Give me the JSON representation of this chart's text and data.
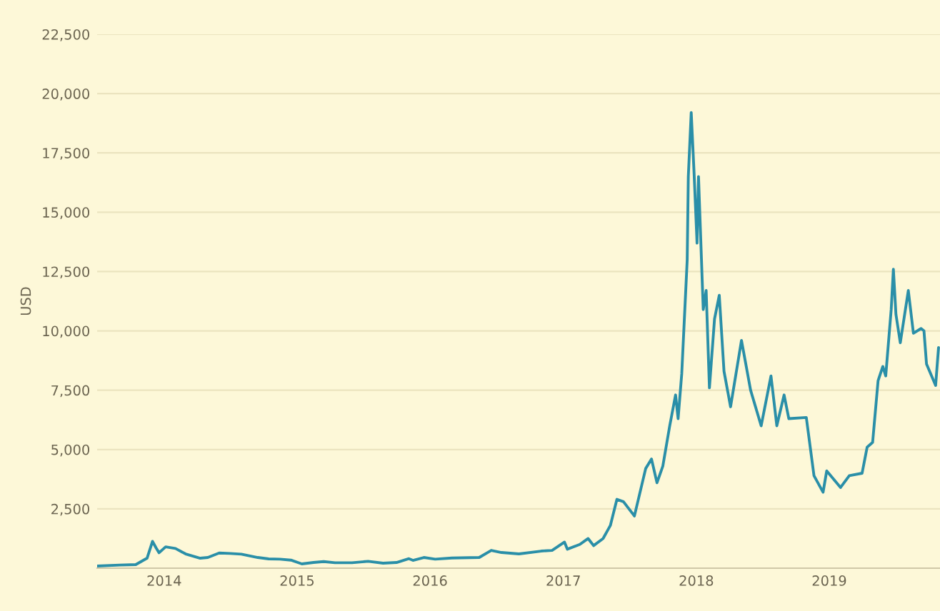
{
  "chart_data": {
    "type": "line",
    "ylabel": "USD",
    "grid": "y",
    "legend": false,
    "marker": "none",
    "line_style": "solid",
    "xlim": [
      "2013-07-01",
      "2019-11-01"
    ],
    "xticks": [
      {
        "value": "2014-01-01",
        "label": "2014"
      },
      {
        "value": "2015-01-01",
        "label": "2015"
      },
      {
        "value": "2016-01-01",
        "label": "2016"
      },
      {
        "value": "2017-01-01",
        "label": "2017"
      },
      {
        "value": "2018-01-01",
        "label": "2018"
      },
      {
        "value": "2019-01-01",
        "label": "2019"
      }
    ],
    "ylim": [
      0,
      22500
    ],
    "yticks": [
      {
        "value": 2500,
        "label": "2,500"
      },
      {
        "value": 5000,
        "label": "5,000"
      },
      {
        "value": 7500,
        "label": "7,500"
      },
      {
        "value": 10000,
        "label": "10,000"
      },
      {
        "value": 12500,
        "label": "12,500"
      },
      {
        "value": 15000,
        "label": "15,000"
      },
      {
        "value": 17500,
        "label": "17,500"
      },
      {
        "value": 20000,
        "label": "20,000"
      },
      {
        "value": 22500,
        "label": "22,500"
      }
    ],
    "x": [
      "2013-07-01",
      "2013-09-01",
      "2013-10-15",
      "2013-11-15",
      "2013-11-30",
      "2013-12-10",
      "2013-12-18",
      "2014-01-05",
      "2014-02-01",
      "2014-03-01",
      "2014-04-10",
      "2014-05-01",
      "2014-06-01",
      "2014-07-01",
      "2014-08-01",
      "2014-09-15",
      "2014-10-15",
      "2014-11-15",
      "2014-12-15",
      "2015-01-14",
      "2015-02-15",
      "2015-03-15",
      "2015-04-15",
      "2015-06-01",
      "2015-07-15",
      "2015-08-25",
      "2015-10-01",
      "2015-11-04",
      "2015-11-15",
      "2015-12-15",
      "2016-01-15",
      "2016-03-01",
      "2016-05-15",
      "2016-06-17",
      "2016-07-15",
      "2016-09-01",
      "2016-11-01",
      "2016-12-01",
      "2017-01-04",
      "2017-01-12",
      "2017-02-15",
      "2017-03-10",
      "2017-03-25",
      "2017-04-20",
      "2017-05-10",
      "2017-05-28",
      "2017-06-15",
      "2017-07-15",
      "2017-08-15",
      "2017-08-31",
      "2017-09-15",
      "2017-10-01",
      "2017-10-20",
      "2017-11-05",
      "2017-11-12",
      "2017-11-22",
      "2017-12-07",
      "2017-12-10",
      "2017-12-18",
      "2017-12-26",
      "2018-01-03",
      "2018-01-07",
      "2018-01-20",
      "2018-01-28",
      "2018-02-06",
      "2018-02-20",
      "2018-03-05",
      "2018-03-18",
      "2018-04-05",
      "2018-05-05",
      "2018-05-30",
      "2018-06-28",
      "2018-07-25",
      "2018-08-10",
      "2018-08-30",
      "2018-09-12",
      "2018-10-30",
      "2018-11-20",
      "2018-12-15",
      "2018-12-25",
      "2019-02-01",
      "2019-02-25",
      "2019-04-01",
      "2019-04-15",
      "2019-04-30",
      "2019-05-15",
      "2019-05-28",
      "2019-06-05",
      "2019-06-20",
      "2019-06-26",
      "2019-07-03",
      "2019-07-15",
      "2019-08-06",
      "2019-08-20",
      "2019-09-10",
      "2019-09-18",
      "2019-09-25",
      "2019-10-20",
      "2019-10-28"
    ],
    "series": [
      {
        "color": "#2a8fa8",
        "values": [
          90,
          130,
          150,
          420,
          1130,
          850,
          650,
          900,
          830,
          600,
          420,
          450,
          640,
          620,
          590,
          450,
          390,
          380,
          340,
          180,
          240,
          280,
          230,
          230,
          290,
          210,
          240,
          400,
          330,
          450,
          380,
          430,
          450,
          750,
          660,
          600,
          720,
          750,
          1100,
          800,
          1000,
          1250,
          950,
          1250,
          1800,
          2900,
          2800,
          2200,
          4200,
          4600,
          3600,
          4300,
          6000,
          7300,
          6300,
          8200,
          13000,
          16500,
          19200,
          16600,
          13700,
          16500,
          10900,
          11700,
          7600,
          10500,
          11500,
          8300,
          6800,
          9600,
          7500,
          6000,
          8100,
          6000,
          7300,
          6300,
          6350,
          3900,
          3200,
          4100,
          3400,
          3900,
          4000,
          5100,
          5300,
          7900,
          8500,
          8100,
          10900,
          12600,
          10700,
          9500,
          11700,
          9900,
          10100,
          10000,
          8600,
          7700,
          9300
        ]
      }
    ]
  }
}
